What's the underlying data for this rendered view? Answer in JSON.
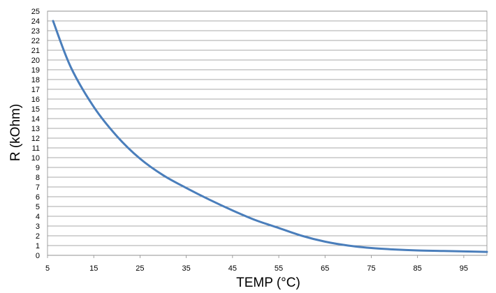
{
  "chart_data": {
    "type": "line",
    "xlabel": "TEMP (°C)",
    "ylabel": "R (kOhm)",
    "xlim": [
      5,
      100
    ],
    "ylim": [
      0,
      25
    ],
    "x_ticks": [
      "5",
      "15",
      "25",
      "35",
      "45",
      "55",
      "65",
      "75",
      "85",
      "95"
    ],
    "y_ticks": [
      "0",
      "1",
      "2",
      "3",
      "4",
      "5",
      "6",
      "7",
      "8",
      "9",
      "10",
      "11",
      "12",
      "13",
      "14",
      "15",
      "16",
      "17",
      "18",
      "19",
      "20",
      "21",
      "22",
      "23",
      "24",
      "25"
    ],
    "grid": true,
    "legend": "none",
    "series": [
      {
        "color": "#4a7ebb",
        "x": [
          6.2,
          10,
          15,
          20,
          25,
          30,
          35,
          40,
          45,
          50,
          55,
          60,
          65,
          70,
          75,
          80,
          85,
          90,
          95,
          100
        ],
        "y": [
          24.0,
          19.3,
          15.2,
          12.2,
          9.9,
          8.2,
          6.9,
          5.7,
          4.6,
          3.6,
          2.8,
          2.0,
          1.4,
          1.0,
          0.75,
          0.6,
          0.5,
          0.45,
          0.4,
          0.35
        ]
      }
    ]
  }
}
